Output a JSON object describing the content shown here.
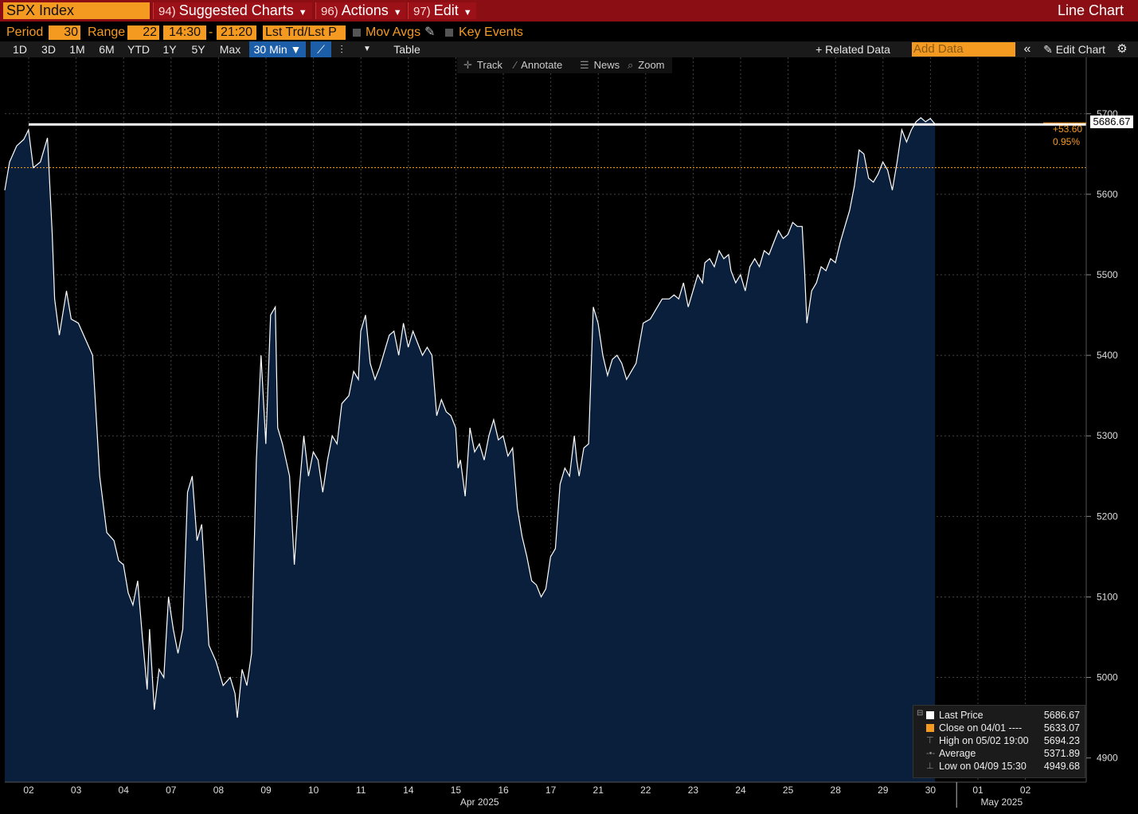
{
  "header": {
    "ticker": "SPX Index",
    "menus": [
      {
        "num": "94)",
        "label": "Suggested Charts"
      },
      {
        "num": "96)",
        "label": "Actions"
      },
      {
        "num": "97)",
        "label": "Edit"
      }
    ],
    "chart_type": "Line Chart"
  },
  "controls": {
    "period_label": "Period",
    "period_value": "30",
    "range_label": "Range",
    "range_value": "22",
    "time_from": "14:30",
    "time_sep": "-",
    "time_to": "21:20",
    "price_type": "Lst Trd/Lst P",
    "mov_avgs": "Mov Avgs",
    "key_events": "Key Events"
  },
  "range_buttons": [
    "1D",
    "3D",
    "1M",
    "6M",
    "YTD",
    "1Y",
    "5Y",
    "Max"
  ],
  "interval_button": "30 Min ▼",
  "table_button": "Table",
  "related_data": "+ Related Data",
  "add_data_placeholder": "Add Data",
  "edit_chart": "Edit Chart",
  "toolbar": {
    "track": "Track",
    "annotate": "Annotate",
    "news": "News",
    "zoom": "Zoom"
  },
  "price_tag": "5686.67",
  "change_abs": "+53.60",
  "change_pct": "0.95%",
  "legend": {
    "rows": [
      {
        "key": "Last Price",
        "value": "5686.67",
        "color": "#ffffff"
      },
      {
        "key": "Close on 04/01 ----",
        "value": "5633.07",
        "color": "#f59a20"
      },
      {
        "key": "High on 05/02 19:00",
        "value": "5694.23",
        "color": "#888888"
      },
      {
        "key": "Average",
        "value": "5371.89",
        "color": "#888888"
      },
      {
        "key": "Low on 04/09 15:30",
        "value": "4949.68",
        "color": "#888888"
      }
    ]
  },
  "chart_data": {
    "type": "area",
    "ylim": [
      4870,
      5770
    ],
    "yticks": [
      4900,
      5000,
      5100,
      5200,
      5300,
      5400,
      5500,
      5600,
      5700
    ],
    "x_tick_labels": [
      "02",
      "03",
      "04",
      "07",
      "08",
      "09",
      "10",
      "11",
      "14",
      "15",
      "16",
      "17",
      "21",
      "22",
      "23",
      "24",
      "25",
      "28",
      "29",
      "30",
      "01",
      "02"
    ],
    "month_labels": [
      "Apr 2025",
      "May 2025"
    ],
    "reference_close": 5633.07,
    "last_price": 5686.67,
    "fill_color": "#0a1f3c",
    "line_color": "#ffffff",
    "series": [
      {
        "values": [
          [
            0,
            5605
          ],
          [
            0.1,
            5640
          ],
          [
            0.25,
            5660
          ],
          [
            0.4,
            5668
          ],
          [
            0.5,
            5680
          ],
          [
            0.6,
            5633
          ],
          [
            0.75,
            5640
          ],
          [
            0.9,
            5670
          ],
          [
            1.0,
            5550
          ],
          [
            1.05,
            5470
          ],
          [
            1.15,
            5425
          ],
          [
            1.3,
            5480
          ],
          [
            1.4,
            5445
          ],
          [
            1.55,
            5440
          ],
          [
            1.7,
            5420
          ],
          [
            1.85,
            5400
          ],
          [
            2.0,
            5250
          ],
          [
            2.15,
            5180
          ],
          [
            2.3,
            5170
          ],
          [
            2.4,
            5145
          ],
          [
            2.5,
            5140
          ],
          [
            2.6,
            5105
          ],
          [
            2.7,
            5090
          ],
          [
            2.8,
            5120
          ],
          [
            2.9,
            5050
          ],
          [
            3.0,
            4985
          ],
          [
            3.05,
            5060
          ],
          [
            3.15,
            4960
          ],
          [
            3.25,
            5010
          ],
          [
            3.35,
            5000
          ],
          [
            3.45,
            5100
          ],
          [
            3.55,
            5060
          ],
          [
            3.65,
            5030
          ],
          [
            3.75,
            5060
          ],
          [
            3.85,
            5230
          ],
          [
            3.95,
            5250
          ],
          [
            4.05,
            5170
          ],
          [
            4.15,
            5190
          ],
          [
            4.3,
            5040
          ],
          [
            4.45,
            5020
          ],
          [
            4.6,
            4990
          ],
          [
            4.75,
            5000
          ],
          [
            4.85,
            4980
          ],
          [
            4.9,
            4950
          ],
          [
            5.0,
            5010
          ],
          [
            5.1,
            4990
          ],
          [
            5.2,
            5030
          ],
          [
            5.3,
            5270
          ],
          [
            5.4,
            5400
          ],
          [
            5.5,
            5290
          ],
          [
            5.6,
            5450
          ],
          [
            5.7,
            5460
          ],
          [
            5.75,
            5310
          ],
          [
            5.85,
            5290
          ],
          [
            6.0,
            5250
          ],
          [
            6.1,
            5140
          ],
          [
            6.2,
            5230
          ],
          [
            6.3,
            5300
          ],
          [
            6.4,
            5250
          ],
          [
            6.5,
            5280
          ],
          [
            6.6,
            5270
          ],
          [
            6.7,
            5230
          ],
          [
            6.8,
            5270
          ],
          [
            6.9,
            5300
          ],
          [
            7.0,
            5290
          ],
          [
            7.1,
            5340
          ],
          [
            7.25,
            5350
          ],
          [
            7.35,
            5380
          ],
          [
            7.45,
            5370
          ],
          [
            7.5,
            5430
          ],
          [
            7.6,
            5450
          ],
          [
            7.7,
            5390
          ],
          [
            7.8,
            5370
          ],
          [
            7.9,
            5385
          ],
          [
            8.0,
            5405
          ],
          [
            8.1,
            5425
          ],
          [
            8.2,
            5430
          ],
          [
            8.3,
            5400
          ],
          [
            8.4,
            5440
          ],
          [
            8.5,
            5410
          ],
          [
            8.6,
            5430
          ],
          [
            8.7,
            5415
          ],
          [
            8.8,
            5400
          ],
          [
            8.9,
            5410
          ],
          [
            9.0,
            5400
          ],
          [
            9.1,
            5325
          ],
          [
            9.2,
            5345
          ],
          [
            9.3,
            5330
          ],
          [
            9.4,
            5325
          ],
          [
            9.5,
            5310
          ],
          [
            9.55,
            5260
          ],
          [
            9.6,
            5270
          ],
          [
            9.7,
            5225
          ],
          [
            9.8,
            5310
          ],
          [
            9.9,
            5280
          ],
          [
            10.0,
            5290
          ],
          [
            10.1,
            5270
          ],
          [
            10.2,
            5300
          ],
          [
            10.3,
            5320
          ],
          [
            10.4,
            5295
          ],
          [
            10.5,
            5300
          ],
          [
            10.6,
            5275
          ],
          [
            10.7,
            5285
          ],
          [
            10.8,
            5210
          ],
          [
            10.9,
            5175
          ],
          [
            11.0,
            5150
          ],
          [
            11.1,
            5120
          ],
          [
            11.2,
            5115
          ],
          [
            11.3,
            5100
          ],
          [
            11.4,
            5110
          ],
          [
            11.5,
            5150
          ],
          [
            11.6,
            5160
          ],
          [
            11.7,
            5240
          ],
          [
            11.8,
            5260
          ],
          [
            11.9,
            5250
          ],
          [
            12.0,
            5300
          ],
          [
            12.05,
            5270
          ],
          [
            12.1,
            5250
          ],
          [
            12.2,
            5285
          ],
          [
            12.3,
            5290
          ],
          [
            12.4,
            5460
          ],
          [
            12.5,
            5440
          ],
          [
            12.6,
            5400
          ],
          [
            12.7,
            5375
          ],
          [
            12.8,
            5395
          ],
          [
            12.9,
            5400
          ],
          [
            13.0,
            5390
          ],
          [
            13.1,
            5370
          ],
          [
            13.2,
            5380
          ],
          [
            13.3,
            5390
          ],
          [
            13.45,
            5440
          ],
          [
            13.6,
            5445
          ],
          [
            13.75,
            5460
          ],
          [
            13.85,
            5470
          ],
          [
            14.0,
            5470
          ],
          [
            14.1,
            5475
          ],
          [
            14.2,
            5470
          ],
          [
            14.3,
            5490
          ],
          [
            14.4,
            5460
          ],
          [
            14.5,
            5480
          ],
          [
            14.6,
            5500
          ],
          [
            14.7,
            5490
          ],
          [
            14.75,
            5515
          ],
          [
            14.85,
            5520
          ],
          [
            14.95,
            5510
          ],
          [
            15.05,
            5530
          ],
          [
            15.15,
            5520
          ],
          [
            15.25,
            5525
          ],
          [
            15.3,
            5505
          ],
          [
            15.4,
            5490
          ],
          [
            15.5,
            5500
          ],
          [
            15.6,
            5480
          ],
          [
            15.7,
            5510
          ],
          [
            15.8,
            5520
          ],
          [
            15.9,
            5510
          ],
          [
            16.0,
            5530
          ],
          [
            16.1,
            5525
          ],
          [
            16.2,
            5540
          ],
          [
            16.3,
            5555
          ],
          [
            16.4,
            5545
          ],
          [
            16.5,
            5550
          ],
          [
            16.6,
            5565
          ],
          [
            16.7,
            5560
          ],
          [
            16.8,
            5560
          ],
          [
            16.85,
            5505
          ],
          [
            16.9,
            5440
          ],
          [
            17.0,
            5480
          ],
          [
            17.1,
            5490
          ],
          [
            17.2,
            5510
          ],
          [
            17.3,
            5505
          ],
          [
            17.4,
            5520
          ],
          [
            17.5,
            5515
          ],
          [
            17.6,
            5540
          ],
          [
            17.7,
            5560
          ],
          [
            17.8,
            5580
          ],
          [
            17.9,
            5610
          ],
          [
            18.0,
            5655
          ],
          [
            18.1,
            5650
          ],
          [
            18.2,
            5620
          ],
          [
            18.3,
            5615
          ],
          [
            18.4,
            5625
          ],
          [
            18.5,
            5640
          ],
          [
            18.6,
            5630
          ],
          [
            18.7,
            5605
          ],
          [
            18.8,
            5640
          ],
          [
            18.9,
            5680
          ],
          [
            19.0,
            5665
          ],
          [
            19.1,
            5680
          ],
          [
            19.2,
            5690
          ],
          [
            19.3,
            5695
          ],
          [
            19.4,
            5690
          ],
          [
            19.5,
            5694
          ],
          [
            19.6,
            5687
          ]
        ]
      }
    ]
  }
}
